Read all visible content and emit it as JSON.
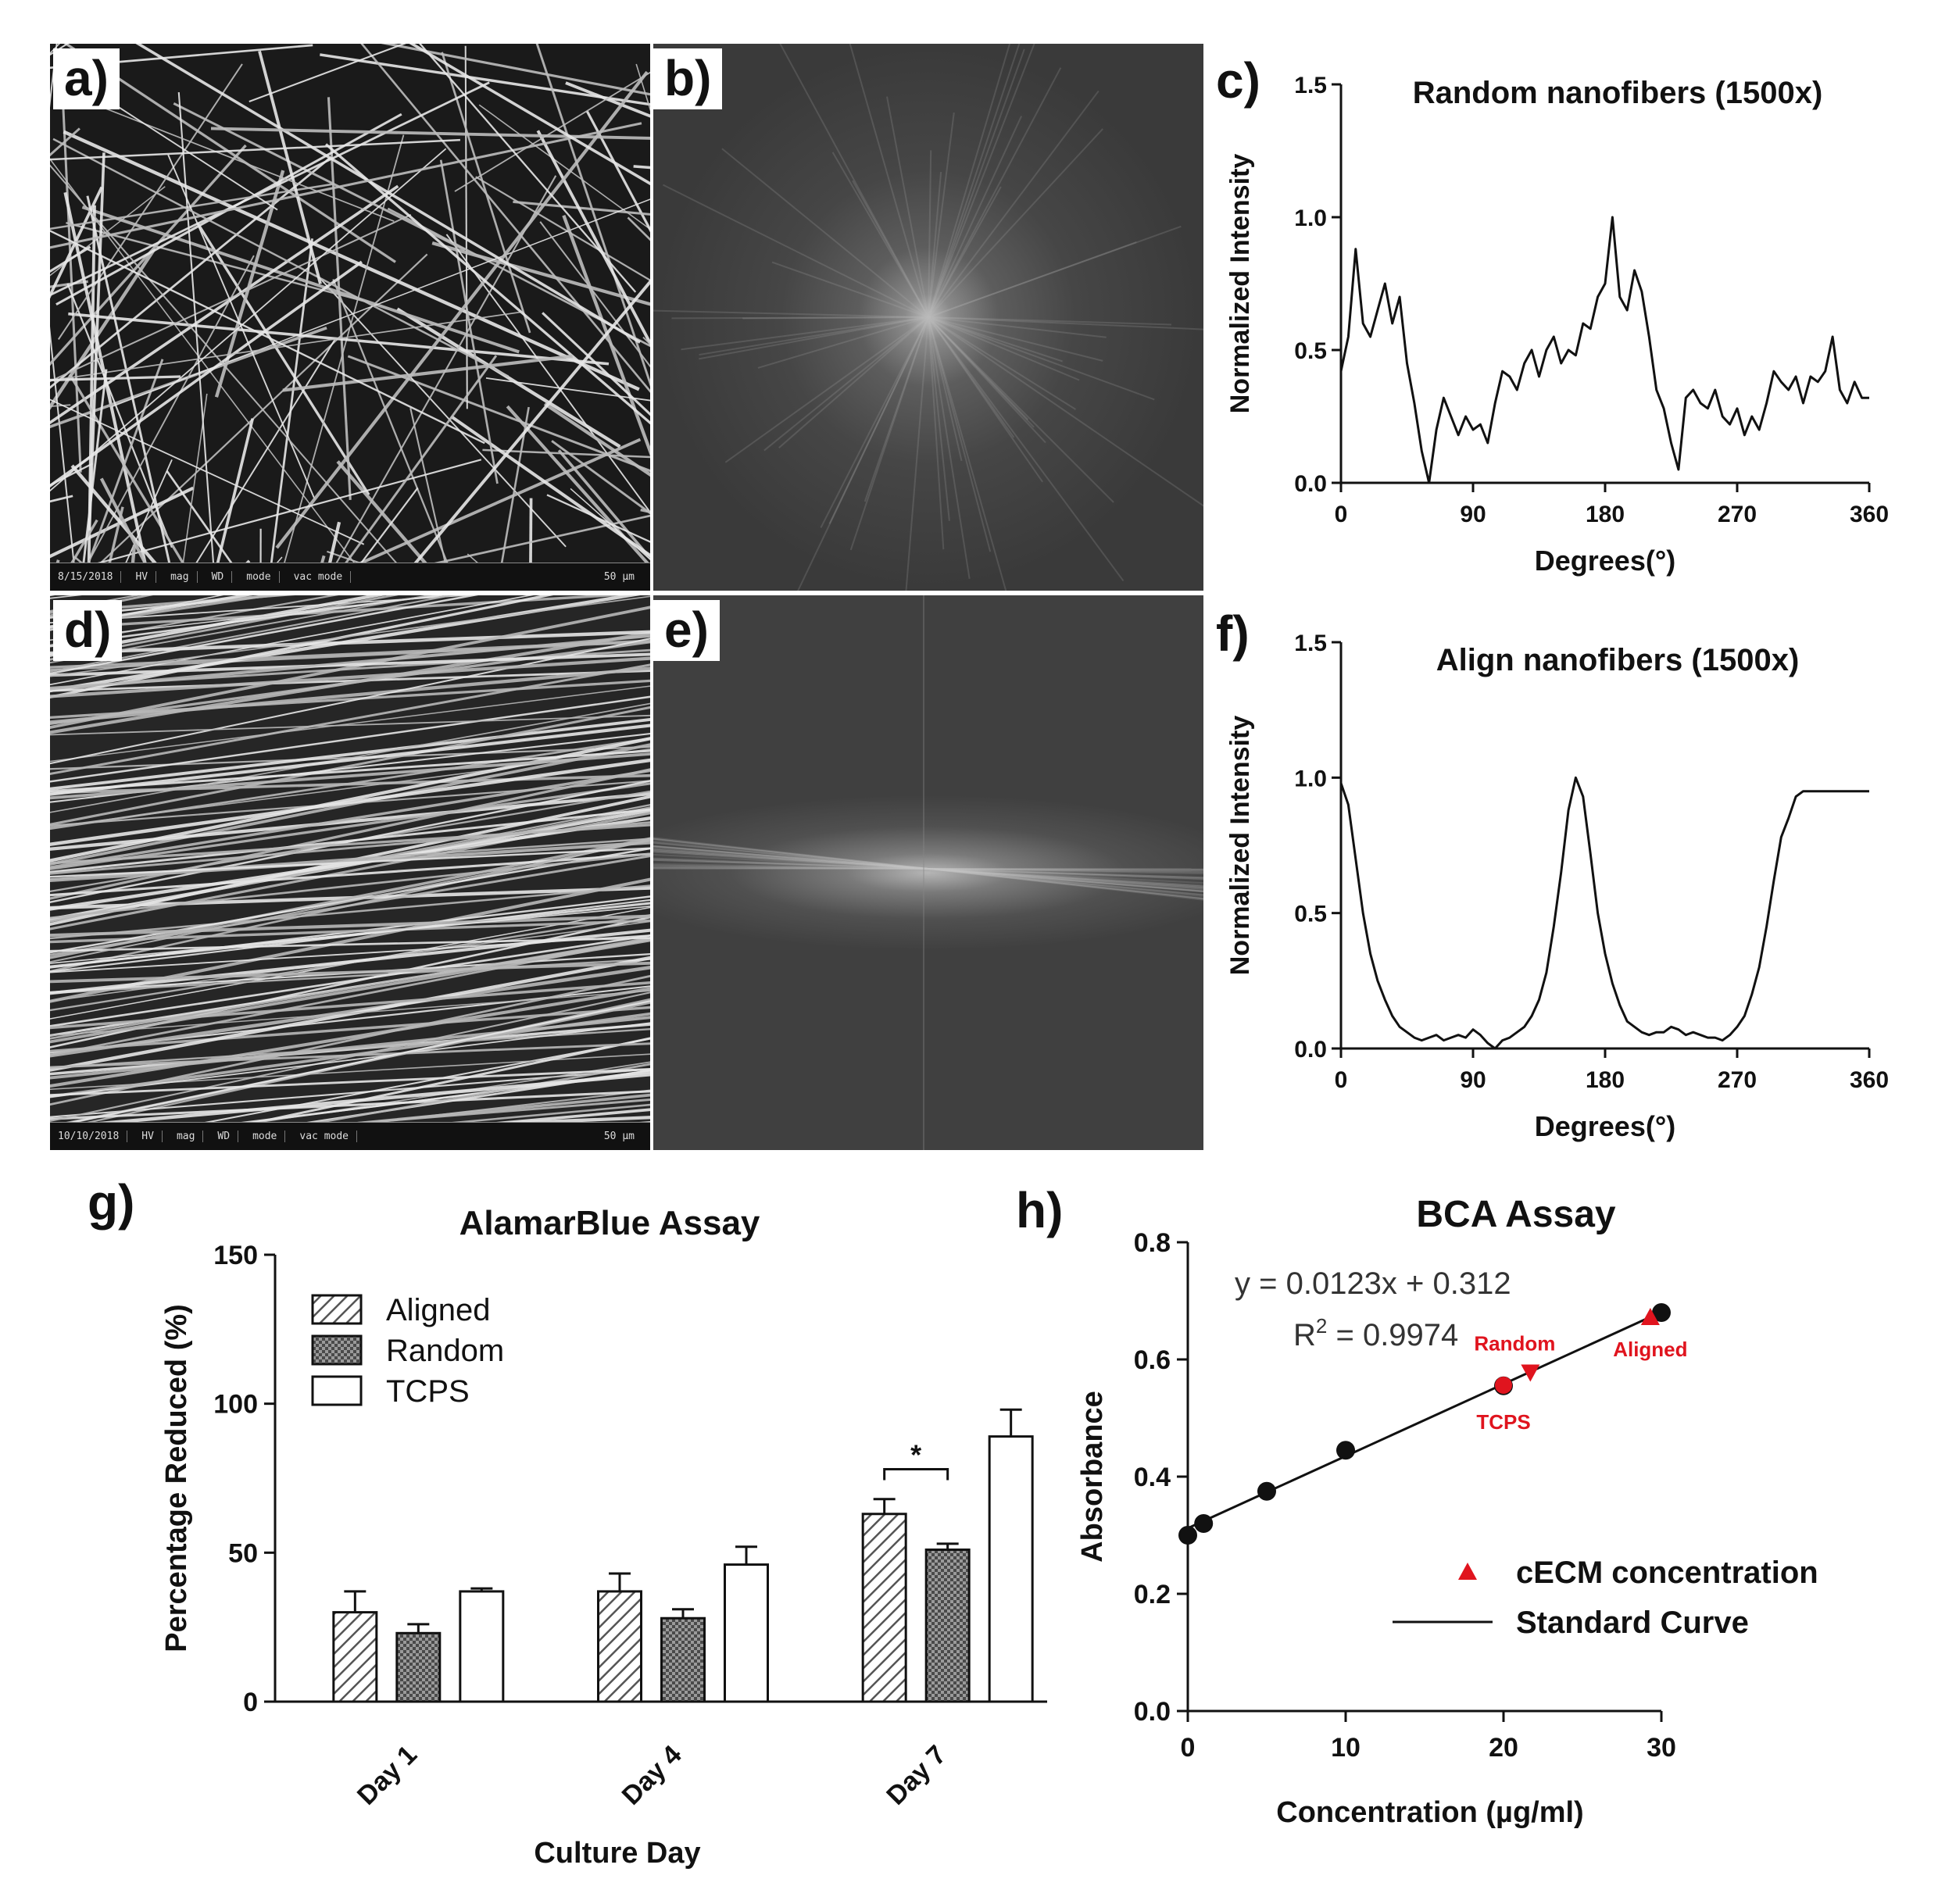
{
  "panel_labels": {
    "a": "a)",
    "b": "b)",
    "c": "c)",
    "d": "d)",
    "e": "e)",
    "f": "f)",
    "g": "g)",
    "h": "h)"
  },
  "sem_a_info": [
    "8/15/2018",
    "HV",
    "mag",
    "WD",
    "mode",
    "vac mode",
    "50 µm"
  ],
  "sem_d_info": [
    "10/10/2018",
    "HV",
    "mag",
    "WD",
    "mode",
    "vac mode",
    "50 µm"
  ],
  "colors": {
    "line": "#111111",
    "red": "#e0141e",
    "panel_bg": "#ffffff"
  },
  "chart_data": [
    {
      "id": "c",
      "type": "line",
      "title": "Random nanofibers (1500x)",
      "xlabel": "Degrees(°)",
      "ylabel": "Normalized Intensity",
      "xlim": [
        0,
        360
      ],
      "ylim": [
        0,
        1.5
      ],
      "xticks": [
        "0",
        "90",
        "180",
        "270",
        "360"
      ],
      "yticks": [
        "0.0",
        "0.5",
        "1.0",
        "1.5"
      ],
      "x": [
        0,
        5,
        10,
        15,
        20,
        25,
        30,
        35,
        40,
        45,
        50,
        55,
        60,
        65,
        70,
        75,
        80,
        85,
        90,
        95,
        100,
        105,
        110,
        115,
        120,
        125,
        130,
        135,
        140,
        145,
        150,
        155,
        160,
        165,
        170,
        175,
        180,
        185,
        190,
        195,
        200,
        205,
        210,
        215,
        220,
        225,
        230,
        235,
        240,
        245,
        250,
        255,
        260,
        265,
        270,
        275,
        280,
        285,
        290,
        295,
        300,
        305,
        310,
        315,
        320,
        325,
        330,
        335,
        340,
        345,
        350,
        355,
        360
      ],
      "y": [
        0.42,
        0.55,
        0.88,
        0.6,
        0.55,
        0.65,
        0.75,
        0.6,
        0.7,
        0.45,
        0.3,
        0.12,
        0.0,
        0.2,
        0.32,
        0.25,
        0.18,
        0.25,
        0.2,
        0.22,
        0.15,
        0.3,
        0.42,
        0.4,
        0.35,
        0.45,
        0.5,
        0.4,
        0.5,
        0.55,
        0.45,
        0.5,
        0.48,
        0.6,
        0.58,
        0.7,
        0.75,
        1.0,
        0.7,
        0.65,
        0.8,
        0.72,
        0.55,
        0.35,
        0.28,
        0.15,
        0.05,
        0.32,
        0.35,
        0.3,
        0.28,
        0.35,
        0.25,
        0.22,
        0.28,
        0.18,
        0.25,
        0.2,
        0.3,
        0.42,
        0.38,
        0.35,
        0.4,
        0.3,
        0.4,
        0.38,
        0.42,
        0.55,
        0.35,
        0.3,
        0.38,
        0.32,
        0.32
      ]
    },
    {
      "id": "f",
      "type": "line",
      "title": "Align nanofibers (1500x)",
      "xlabel": "Degrees(°)",
      "ylabel": "Normalized Intensity",
      "xlim": [
        0,
        360
      ],
      "ylim": [
        0,
        1.5
      ],
      "xticks": [
        "0",
        "90",
        "180",
        "270",
        "360"
      ],
      "yticks": [
        "0.0",
        "0.5",
        "1.0",
        "1.5"
      ],
      "x": [
        0,
        5,
        10,
        15,
        20,
        25,
        30,
        35,
        40,
        45,
        50,
        55,
        60,
        65,
        70,
        75,
        80,
        85,
        90,
        95,
        100,
        105,
        110,
        115,
        120,
        125,
        130,
        135,
        140,
        145,
        150,
        155,
        160,
        165,
        170,
        175,
        180,
        185,
        190,
        195,
        200,
        205,
        210,
        215,
        220,
        225,
        230,
        235,
        240,
        245,
        250,
        255,
        260,
        265,
        270,
        275,
        280,
        285,
        290,
        295,
        300,
        305,
        310,
        315,
        320,
        325,
        330,
        335,
        340,
        345,
        350,
        355,
        360
      ],
      "y": [
        0.98,
        0.9,
        0.7,
        0.5,
        0.35,
        0.25,
        0.18,
        0.12,
        0.08,
        0.06,
        0.04,
        0.03,
        0.04,
        0.05,
        0.03,
        0.04,
        0.05,
        0.04,
        0.07,
        0.05,
        0.02,
        0.0,
        0.03,
        0.04,
        0.06,
        0.08,
        0.12,
        0.18,
        0.28,
        0.45,
        0.65,
        0.88,
        1.0,
        0.93,
        0.72,
        0.5,
        0.35,
        0.24,
        0.16,
        0.1,
        0.08,
        0.06,
        0.05,
        0.06,
        0.06,
        0.08,
        0.07,
        0.05,
        0.06,
        0.05,
        0.04,
        0.04,
        0.03,
        0.05,
        0.08,
        0.12,
        0.2,
        0.3,
        0.45,
        0.62,
        0.78,
        0.85,
        0.93,
        0.95,
        0.95,
        0.95,
        0.95,
        0.95,
        0.95,
        0.95,
        0.95,
        0.95,
        0.95
      ]
    },
    {
      "id": "g",
      "type": "bar",
      "title": "AlamarBlue Assay",
      "xlabel": "Culture Day",
      "ylabel": "Percentage Reduced (%)",
      "ylim": [
        0,
        150
      ],
      "yticks": [
        "0",
        "50",
        "100",
        "150"
      ],
      "categories": [
        "Day 1",
        "Day 4",
        "Day 7"
      ],
      "series": [
        {
          "name": "Aligned",
          "values": [
            30,
            37,
            63
          ],
          "errors": [
            7,
            6,
            5
          ]
        },
        {
          "name": "Random",
          "values": [
            23,
            28,
            51
          ],
          "errors": [
            3,
            3,
            2
          ]
        },
        {
          "name": "TCPS",
          "values": [
            37,
            46,
            89
          ],
          "errors": [
            1,
            6,
            9
          ]
        }
      ],
      "annotation": "*"
    },
    {
      "id": "h",
      "type": "scatter",
      "title": "BCA Assay",
      "xlabel": "Concentration (µg/ml)",
      "ylabel": "Absorbance",
      "xlim": [
        0,
        30
      ],
      "ylim": [
        0,
        0.8
      ],
      "xticks": [
        "0",
        "10",
        "20",
        "30"
      ],
      "yticks": [
        "0.0",
        "0.2",
        "0.4",
        "0.6",
        "0.8"
      ],
      "standard_points": {
        "x": [
          0,
          1,
          5,
          10,
          20,
          30
        ],
        "y": [
          0.3,
          0.32,
          0.375,
          0.445,
          0.555,
          0.68
        ]
      },
      "fit": {
        "slope": 0.0123,
        "intercept": 0.312
      },
      "equation": "y = 0.0123x + 0.312",
      "r2_prefix": "R",
      "r2_sup": "2",
      "r2_value": " = 0.9974",
      "samples": [
        {
          "name": "TCPS",
          "x": 20,
          "y": 0.556,
          "marker": "circle"
        },
        {
          "name": "Random",
          "x": 21.7,
          "y": 0.578,
          "marker": "triangle-down"
        },
        {
          "name": "Aligned",
          "x": 29.3,
          "y": 0.672,
          "marker": "triangle-up"
        }
      ],
      "legend": [
        "cECM concentration",
        "Standard Curve"
      ]
    }
  ]
}
